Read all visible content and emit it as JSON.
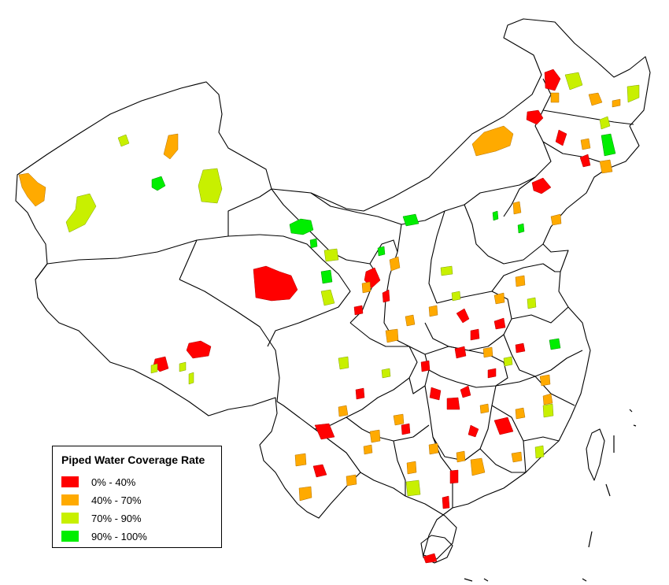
{
  "legend": {
    "title": "Piped Water Coverage Rate",
    "items": [
      {
        "label": "0% - 40%",
        "color": "#ff0000"
      },
      {
        "label": "40% - 70%",
        "color": "#ffaa00"
      },
      {
        "label": "70% - 90%",
        "color": "#c8f000"
      },
      {
        "label": "90% - 100%",
        "color": "#00ee00"
      }
    ]
  }
}
